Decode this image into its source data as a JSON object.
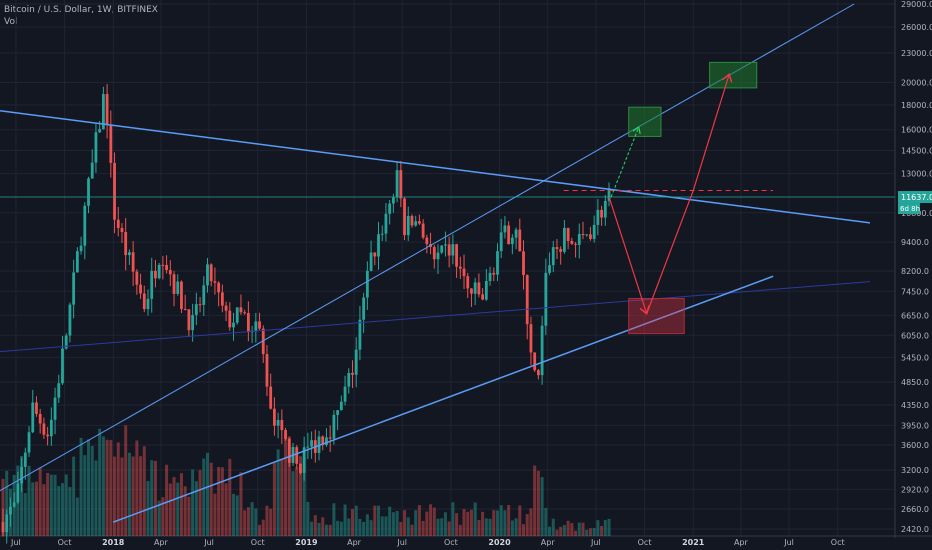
{
  "header": {
    "symbol_line": "Bitcoin / U.S. Dollar, 1W, BITFINEX",
    "volume_label": "Vol"
  },
  "chart_data": {
    "type": "candlestick",
    "symbol": "Bitcoin / U.S. Dollar",
    "interval": "1W",
    "exchange": "BITFINEX",
    "price_scale": "log",
    "price_range": [
      2400,
      30500
    ],
    "price_ticks": [
      "29000.0",
      "26000.0",
      "23000.0",
      "20000.0",
      "18000.0",
      "16000.0",
      "14500.0",
      "13000.0",
      "11637.0",
      "10800.0",
      "9400.0",
      "8200.0",
      "7450.0",
      "6650.0",
      "6050.0",
      "5450.0",
      "4850.0",
      "4350.0",
      "3950.0",
      "3600.0",
      "3200.0",
      "2920.0",
      "2660.0",
      "2420.0"
    ],
    "last_price": "11637.0",
    "countdown_label": "6d 8h",
    "time_ticks": [
      {
        "label": "Jul",
        "year": false
      },
      {
        "label": "Oct",
        "year": false
      },
      {
        "label": "2018",
        "year": true
      },
      {
        "label": "Apr",
        "year": false
      },
      {
        "label": "Jul",
        "year": false
      },
      {
        "label": "Oct",
        "year": false
      },
      {
        "label": "2019",
        "year": true
      },
      {
        "label": "Apr",
        "year": false
      },
      {
        "label": "Jul",
        "year": false
      },
      {
        "label": "Oct",
        "year": false
      },
      {
        "label": "2020",
        "year": true
      },
      {
        "label": "Apr",
        "year": false
      },
      {
        "label": "Jul",
        "year": false
      },
      {
        "label": "Oct",
        "year": false
      },
      {
        "label": "2021",
        "year": true
      },
      {
        "label": "Apr",
        "year": false
      },
      {
        "label": "Jul",
        "year": false
      },
      {
        "label": "Oct",
        "year": false
      }
    ],
    "price_path": [
      [
        "2017-06",
        2500
      ],
      [
        "2017-07",
        2700
      ],
      [
        "2017-08",
        4300
      ],
      [
        "2017-09",
        3800
      ],
      [
        "2017-10",
        5800
      ],
      [
        "2017-11",
        9800
      ],
      [
        "2017-12-17",
        19500
      ],
      [
        "2018-01",
        11000
      ],
      [
        "2018-02",
        8500
      ],
      [
        "2018-03",
        7000
      ],
      [
        "2018-04",
        9200
      ],
      [
        "2018-05",
        7500
      ],
      [
        "2018-06",
        6300
      ],
      [
        "2018-07",
        8200
      ],
      [
        "2018-08",
        6500
      ],
      [
        "2018-09",
        6600
      ],
      [
        "2018-10",
        6400
      ],
      [
        "2018-11",
        4000
      ],
      [
        "2018-12-15",
        3250
      ],
      [
        "2019-01",
        3500
      ],
      [
        "2019-02",
        3800
      ],
      [
        "2019-03",
        4100
      ],
      [
        "2019-04",
        5300
      ],
      [
        "2019-05",
        8500
      ],
      [
        "2019-06-26",
        13000
      ],
      [
        "2019-07",
        10000
      ],
      [
        "2019-08",
        10500
      ],
      [
        "2019-09",
        8400
      ],
      [
        "2019-10",
        9200
      ],
      [
        "2019-11",
        7500
      ],
      [
        "2019-12",
        7200
      ],
      [
        "2020-01",
        9300
      ],
      [
        "2020-02",
        10300
      ],
      [
        "2020-03-12",
        4500
      ],
      [
        "2020-04",
        8700
      ],
      [
        "2020-05",
        9500
      ],
      [
        "2020-06",
        9300
      ],
      [
        "2020-07-26",
        11637
      ]
    ],
    "volume_note": "weekly volume bars, highest around Dec 2017 and Mar 2020",
    "drawings": {
      "descending_trendline": {
        "from": [
          "2017-06",
          17500
        ],
        "to": [
          "2021-12",
          10300
        ],
        "color": "#5b9cf6"
      },
      "ascending_support": {
        "from": [
          "2018-01",
          2500
        ],
        "to": [
          "2021-06",
          8000
        ],
        "color": "#5b9cf6"
      },
      "upper_channel": {
        "from": [
          "2017-06",
          2900
        ],
        "to": [
          "2021-11",
          29000
        ],
        "color": "#5b9cf6"
      },
      "ma_line": {
        "from": [
          "2017-06",
          5600
        ],
        "to": [
          "2021-12",
          7800
        ],
        "color": "#2b3a9e"
      },
      "resistance_dashed": {
        "price": 12000,
        "color": "#f23645"
      },
      "target_box_1": {
        "low": 15500,
        "high": 17800,
        "color": "#1e7a2e"
      },
      "target_box_2": {
        "low": 19500,
        "high": 22000,
        "color": "#1e7a2e"
      },
      "drop_zone_box": {
        "low": 6100,
        "high": 7200,
        "color": "#f23645"
      }
    }
  }
}
